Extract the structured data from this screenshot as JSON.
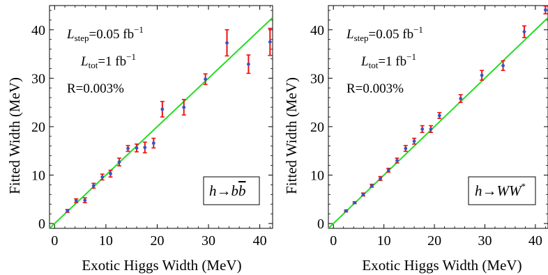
{
  "chart_data": [
    {
      "type": "scatter",
      "xlabel": "Exotic Higgs Width (MeV)",
      "ylabel": "Fitted Width (MeV)",
      "xlim": [
        -1,
        42.5
      ],
      "ylim": [
        -1,
        45
      ],
      "xticks": [
        "0",
        "10",
        "20",
        "30",
        "40"
      ],
      "yticks": [
        "0",
        "10",
        "20",
        "30",
        "40"
      ],
      "annotations": {
        "l_step": {
          "symbol": "L",
          "sub": "step",
          "value": "=0.05 fb",
          "sup": "−1"
        },
        "l_tot": {
          "symbol": "L",
          "sub": "tot",
          "value": "=1 fb",
          "sup": "−1"
        },
        "ratio": "R=0.003%"
      },
      "channel": {
        "prefix": "h→",
        "main": "b",
        "overline": "b",
        "sup": ""
      },
      "fit_line": {
        "x": [
          -1,
          42.5
        ],
        "y": [
          -1,
          42.5
        ],
        "color": "#22dd22"
      },
      "marker_color": "#3355cc",
      "error_color": "#ee1111",
      "points": [
        {
          "x": 2.5,
          "y": 2.6,
          "err": 0.3
        },
        {
          "x": 4.2,
          "y": 4.7,
          "err": 0.4
        },
        {
          "x": 5.9,
          "y": 4.8,
          "err": 0.5
        },
        {
          "x": 7.6,
          "y": 7.8,
          "err": 0.5
        },
        {
          "x": 9.3,
          "y": 9.6,
          "err": 0.6
        },
        {
          "x": 10.9,
          "y": 10.3,
          "err": 0.7
        },
        {
          "x": 12.6,
          "y": 12.7,
          "err": 0.8
        },
        {
          "x": 14.3,
          "y": 15.5,
          "err": 0.6
        },
        {
          "x": 16.0,
          "y": 15.6,
          "err": 0.8
        },
        {
          "x": 17.6,
          "y": 15.7,
          "err": 1.1
        },
        {
          "x": 19.3,
          "y": 16.6,
          "err": 1.0
        },
        {
          "x": 21.0,
          "y": 23.6,
          "err": 1.6
        },
        {
          "x": 25.2,
          "y": 24.0,
          "err": 1.6
        },
        {
          "x": 29.4,
          "y": 29.8,
          "err": 1.1
        },
        {
          "x": 33.6,
          "y": 37.3,
          "err": 2.7
        },
        {
          "x": 37.8,
          "y": 32.9,
          "err": 1.9
        },
        {
          "x": 42.0,
          "y": 37.5,
          "err": 2.8
        }
      ]
    },
    {
      "type": "scatter",
      "xlabel": "Exotic Higgs Width (MeV)",
      "ylabel": "Fitted Width (MeV)",
      "xlim": [
        -1,
        42.5
      ],
      "ylim": [
        -1,
        45
      ],
      "xticks": [
        "0",
        "10",
        "20",
        "30",
        "40"
      ],
      "yticks": [
        "0",
        "10",
        "20",
        "30",
        "40"
      ],
      "annotations": {
        "l_step": {
          "symbol": "L",
          "sub": "step",
          "value": "=0.05 fb",
          "sup": "−1"
        },
        "l_tot": {
          "symbol": "L",
          "sub": "tot",
          "value": "=1 fb",
          "sup": "−1"
        },
        "ratio": "R=0.003%"
      },
      "channel": {
        "prefix": "h→",
        "main": "WW",
        "overline": "",
        "sup": "*"
      },
      "fit_line": {
        "x": [
          -1,
          42.5
        ],
        "y": [
          -1,
          42.5
        ],
        "color": "#22dd22"
      },
      "marker_color": "#3355cc",
      "error_color": "#ee1111",
      "points": [
        {
          "x": 2.5,
          "y": 2.6,
          "err": 0.2
        },
        {
          "x": 4.2,
          "y": 4.3,
          "err": 0.2
        },
        {
          "x": 5.9,
          "y": 6.0,
          "err": 0.3
        },
        {
          "x": 7.6,
          "y": 7.8,
          "err": 0.3
        },
        {
          "x": 9.3,
          "y": 9.3,
          "err": 0.4
        },
        {
          "x": 10.9,
          "y": 11.0,
          "err": 0.4
        },
        {
          "x": 12.6,
          "y": 13.0,
          "err": 0.5
        },
        {
          "x": 14.3,
          "y": 15.5,
          "err": 0.6
        },
        {
          "x": 16.0,
          "y": 17.0,
          "err": 0.6
        },
        {
          "x": 17.6,
          "y": 19.5,
          "err": 0.7
        },
        {
          "x": 19.3,
          "y": 19.5,
          "err": 0.7
        },
        {
          "x": 21.0,
          "y": 22.3,
          "err": 0.6
        },
        {
          "x": 25.2,
          "y": 25.8,
          "err": 0.8
        },
        {
          "x": 29.4,
          "y": 30.6,
          "err": 1.0
        },
        {
          "x": 33.6,
          "y": 32.6,
          "err": 1.0
        },
        {
          "x": 37.8,
          "y": 39.6,
          "err": 1.2
        },
        {
          "x": 42.0,
          "y": 44.1,
          "err": 0.8
        }
      ]
    }
  ]
}
